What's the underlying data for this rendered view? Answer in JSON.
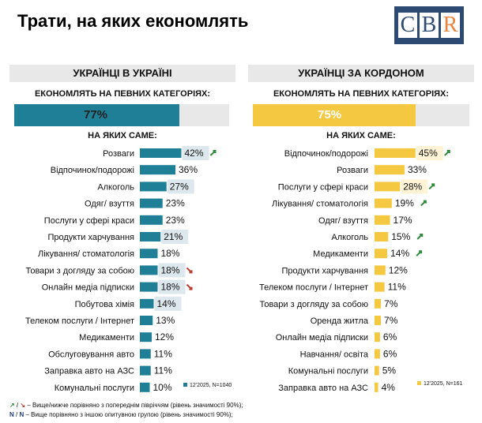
{
  "title": "Трати, на яких економлять",
  "logo": {
    "letters": [
      "C",
      "B",
      "R"
    ]
  },
  "colors": {
    "teal": "#1e7f96",
    "yellow": "#f5c842",
    "green": "#2e8b3a",
    "red": "#c0392b",
    "headbg": "#e8e8e8"
  },
  "left": {
    "header": "УКРАЇНЦІ В УКРАЇНІ",
    "economize_label": "ЕКОНОМЛЯТЬ НА ПЕВНИХ КАТЕГОРІЯХ:",
    "economize_value": "77%",
    "which_label": "НА ЯКИХ САМЕ:"
  },
  "right": {
    "header": "УКРАЇНЦІ ЗА КОРДОНОМ",
    "economize_label": "ЕКОНОМЛЯТЬ НА ПЕВНИХ КАТЕГОРІЯХ:",
    "economize_value": "75%",
    "which_label": "НА ЯКИХ САМЕ:"
  },
  "chart_data": [
    {
      "type": "bar",
      "orientation": "horizontal",
      "name": "Українці в Україні",
      "headline_value": 77,
      "categories": [
        "Розваги",
        "Відпочинок/подорожі",
        "Алкоголь",
        "Одяг/ взуття",
        "Послуги у сфері краси",
        "Продукти харчування",
        "Лікування/ стоматологія",
        "Товари з догляду за собою",
        "Онлайн медіа підписки",
        "Побутова хімія",
        "Телеком послуги / Інтернет",
        "Медикаменти",
        "Обслуговування авто",
        "Заправка авто на АЗС",
        "Комунальні послуги"
      ],
      "values": [
        42,
        36,
        27,
        23,
        23,
        21,
        18,
        18,
        18,
        14,
        13,
        12,
        11,
        11,
        10
      ],
      "labels": [
        "42%",
        "36%",
        "27%",
        "23%",
        "23%",
        "21%",
        "18%",
        "18%",
        "18%",
        "14%",
        "13%",
        "12%",
        "11%",
        "11%",
        "10%"
      ],
      "highlight": [
        true,
        false,
        true,
        false,
        false,
        true,
        false,
        true,
        true,
        true,
        false,
        false,
        false,
        false,
        false
      ],
      "trend": [
        "up",
        "",
        "",
        "",
        "",
        "",
        "",
        "down",
        "down",
        "",
        "",
        "",
        "",
        "",
        ""
      ],
      "legend": "12'2025, N=1040",
      "color": "#1e7f96"
    },
    {
      "type": "bar",
      "orientation": "horizontal",
      "name": "Українці за кордоном",
      "headline_value": 75,
      "categories": [
        "Відпочинок/подорожі",
        "Розваги",
        "Послуги у сфері краси",
        "Лікування/ стоматологія",
        "Одяг/ взуття",
        "Алкоголь",
        "Медикаменти",
        "Продукти харчування",
        "Телеком послуги / Інтернет",
        "Товари з догляду за собою",
        "Оренда житла",
        "Онлайн медіа підписки",
        "Навчання/ освіта",
        "Комунальні послуги",
        "Заправка авто на АЗС"
      ],
      "values": [
        45,
        33,
        28,
        19,
        17,
        15,
        14,
        12,
        11,
        7,
        7,
        6,
        6,
        5,
        4
      ],
      "labels": [
        "45%",
        "33%",
        "28%",
        "19%",
        "17%",
        "15%",
        "14%",
        "12%",
        "11%",
        "7%",
        "7%",
        "6%",
        "6%",
        "5%",
        "4%"
      ],
      "highlight": [
        true,
        false,
        true,
        false,
        false,
        false,
        false,
        false,
        false,
        false,
        false,
        false,
        false,
        false,
        false
      ],
      "trend": [
        "up",
        "",
        "up",
        "up",
        "",
        "up",
        "up",
        "",
        "",
        "",
        "",
        "",
        "",
        "",
        ""
      ],
      "legend": "12'2025, N=161",
      "color": "#f5c842"
    }
  ],
  "footnotes": {
    "line1_text": " – Вище/нижче порівняно з попереднім півріччям (рівень значимості 90%);",
    "line1_up": "↗",
    "line1_sep": " / ",
    "line1_down": "↘",
    "line2_n1": "N",
    "line2_sep": " / ",
    "line2_n2": "N",
    "line2_text": " – Вище порівняно з іншою опитувною групою (рівень значимості 90%);"
  }
}
